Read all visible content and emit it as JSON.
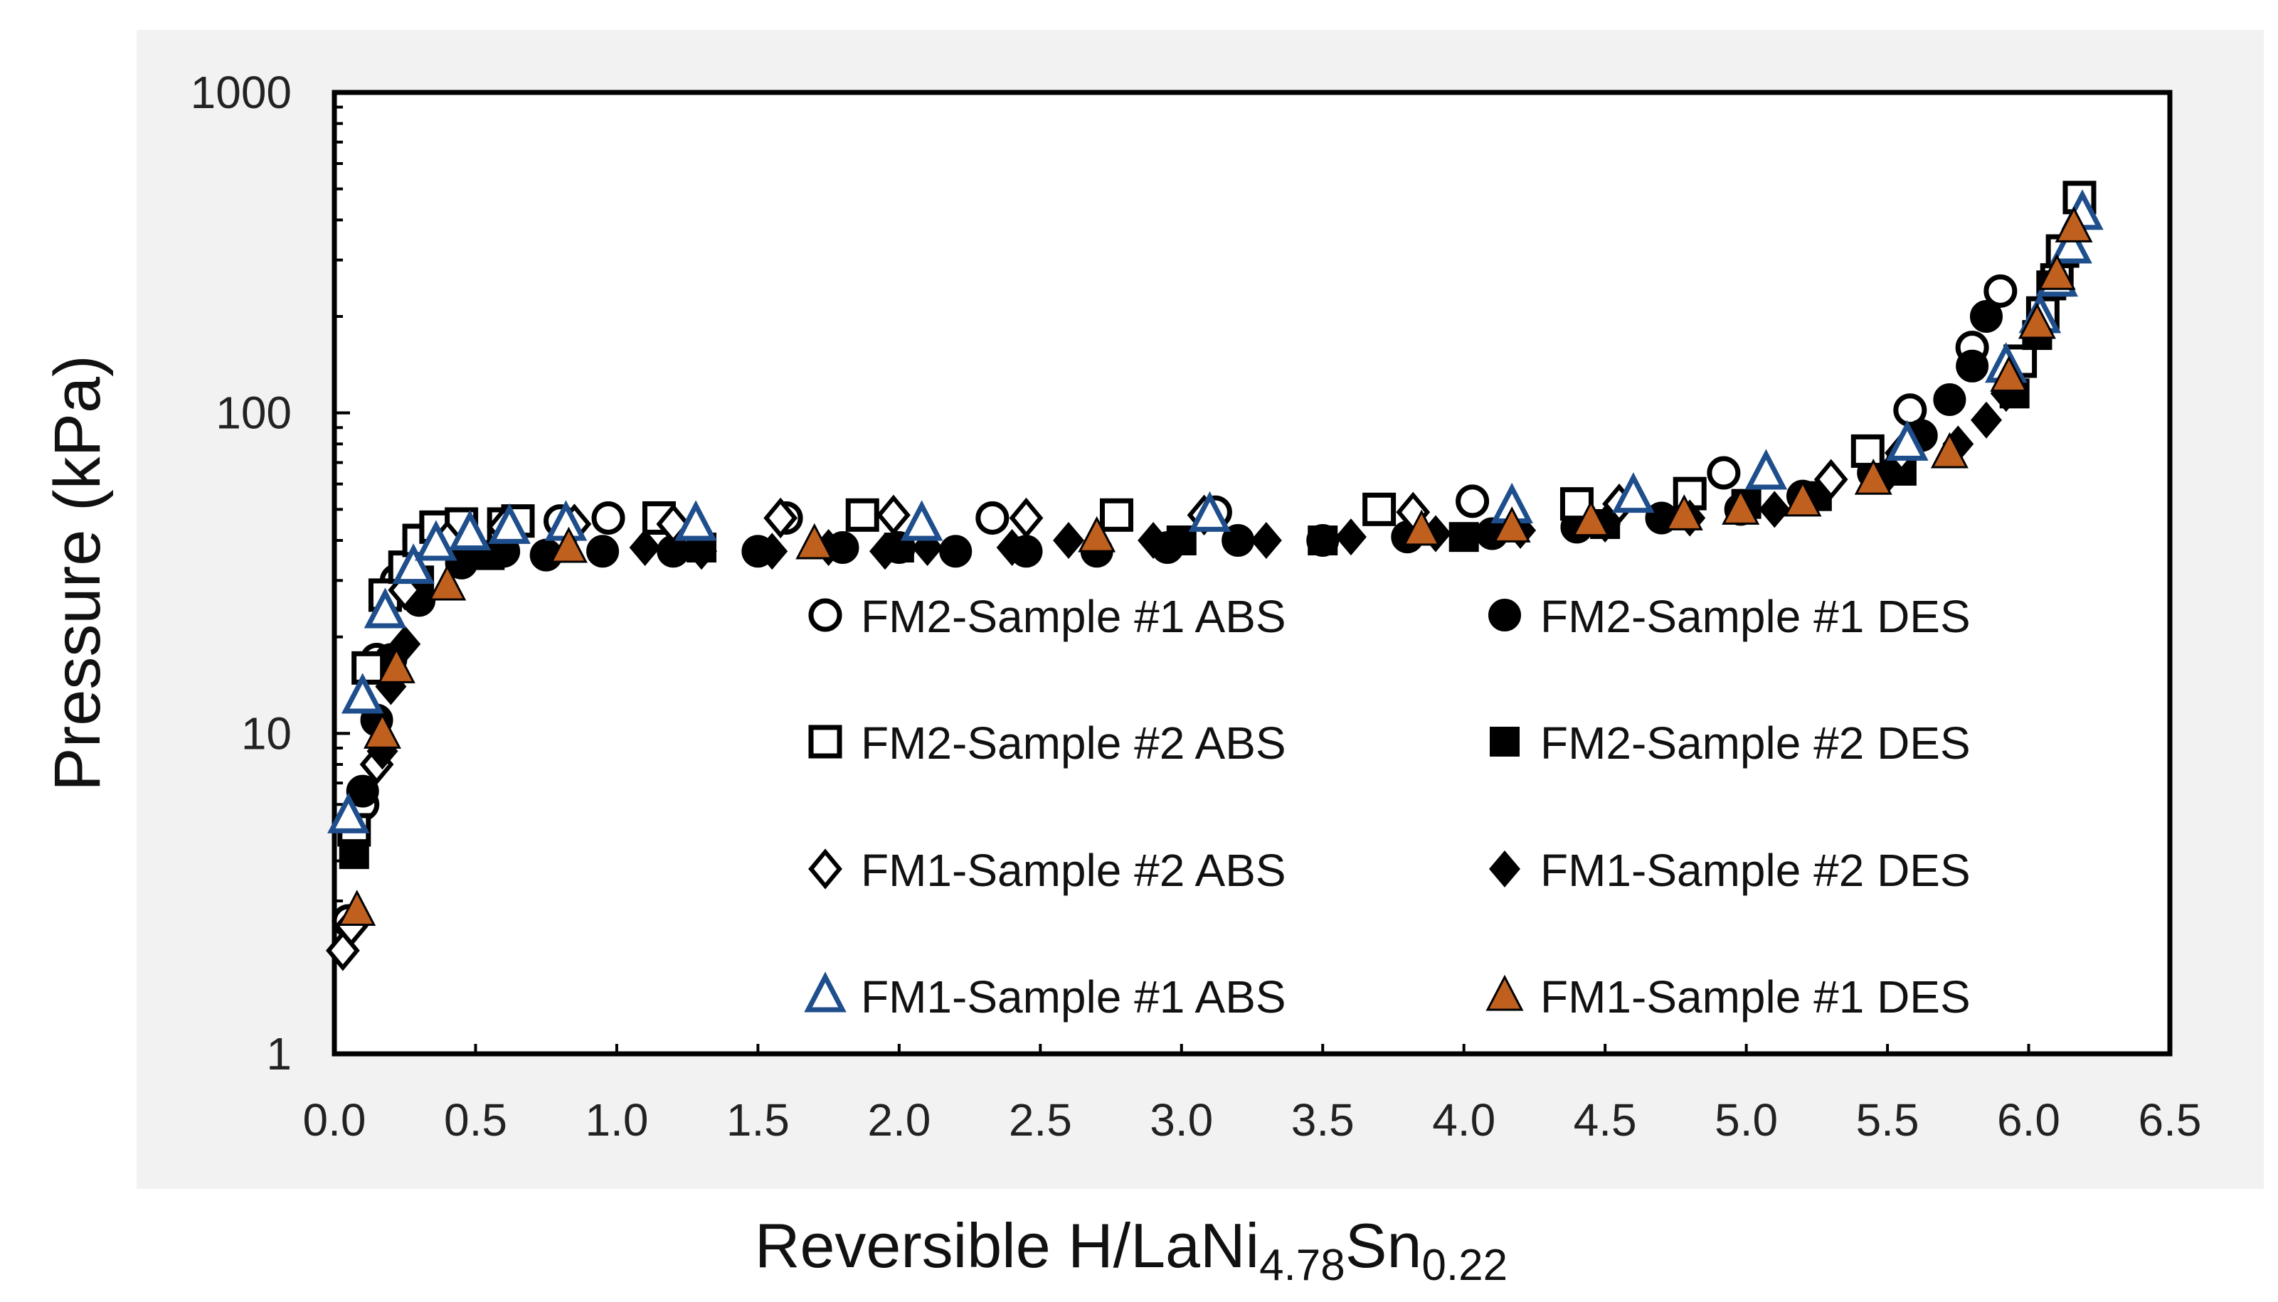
{
  "chart_data": {
    "type": "scatter",
    "title": "",
    "xlabel": {
      "main": "Reversible H/LaNi",
      "sub1": "4.78",
      "mid": "Sn",
      "sub2": "0.22"
    },
    "ylabel": "Pressure (kPa)",
    "xlim": [
      0.0,
      6.5
    ],
    "ylim": [
      1,
      1000
    ],
    "yscale": "log",
    "grid": false,
    "legend_placement": "center",
    "x_ticks": [
      "0.0",
      "0.5",
      "1.0",
      "1.5",
      "2.0",
      "2.5",
      "3.0",
      "3.5",
      "4.0",
      "4.5",
      "5.0",
      "5.5",
      "6.0",
      "6.5"
    ],
    "y_ticks": [
      "1",
      "10",
      "100",
      "1000"
    ],
    "colors": {
      "background_outer": "#f2f2f2",
      "plot_bg": "#ffffff",
      "black": "#000000",
      "triangle_blue": "#1f4e8c",
      "triangle_orange": "#c0601f"
    },
    "series": [
      {
        "name": "FM2-Sample #1 ABS",
        "marker": "circle-open",
        "points": [
          [
            0.05,
            2.6
          ],
          [
            0.1,
            6
          ],
          [
            0.15,
            17
          ],
          [
            0.22,
            30
          ],
          [
            0.3,
            40
          ],
          [
            0.42,
            44
          ],
          [
            0.6,
            45
          ],
          [
            0.8,
            46
          ],
          [
            0.97,
            47
          ],
          [
            1.15,
            47
          ],
          [
            1.6,
            47
          ],
          [
            2.33,
            47
          ],
          [
            3.12,
            49
          ],
          [
            4.03,
            53
          ],
          [
            4.92,
            65
          ],
          [
            5.58,
            102
          ],
          [
            5.8,
            160
          ],
          [
            5.9,
            240
          ]
        ]
      },
      {
        "name": "FM2-Sample #1 DES",
        "marker": "circle-filled",
        "points": [
          [
            0.1,
            6.6
          ],
          [
            0.15,
            11
          ],
          [
            0.2,
            17
          ],
          [
            0.3,
            26
          ],
          [
            0.45,
            34
          ],
          [
            0.6,
            37
          ],
          [
            0.75,
            36
          ],
          [
            0.95,
            37
          ],
          [
            1.2,
            37
          ],
          [
            1.5,
            37
          ],
          [
            1.8,
            38
          ],
          [
            2.0,
            38
          ],
          [
            2.2,
            37
          ],
          [
            2.45,
            37
          ],
          [
            2.7,
            37
          ],
          [
            2.95,
            38
          ],
          [
            3.2,
            40
          ],
          [
            3.5,
            40
          ],
          [
            3.8,
            41
          ],
          [
            4.1,
            42
          ],
          [
            4.4,
            44
          ],
          [
            4.7,
            47
          ],
          [
            4.98,
            50
          ],
          [
            5.2,
            55
          ],
          [
            5.45,
            65
          ],
          [
            5.62,
            85
          ],
          [
            5.72,
            110
          ],
          [
            5.8,
            140
          ],
          [
            5.85,
            200
          ]
        ]
      },
      {
        "name": "FM2-Sample #2 ABS",
        "marker": "square-open",
        "points": [
          [
            0.07,
            5
          ],
          [
            0.12,
            16
          ],
          [
            0.18,
            27
          ],
          [
            0.25,
            33
          ],
          [
            0.3,
            40
          ],
          [
            0.36,
            44
          ],
          [
            0.45,
            45
          ],
          [
            0.6,
            45
          ],
          [
            0.65,
            46
          ],
          [
            1.15,
            47
          ],
          [
            1.87,
            48
          ],
          [
            2.77,
            48
          ],
          [
            3.7,
            50
          ],
          [
            4.4,
            52
          ],
          [
            4.8,
            56
          ],
          [
            5.43,
            76
          ],
          [
            5.97,
            145
          ],
          [
            6.05,
            205
          ],
          [
            6.1,
            260
          ],
          [
            6.12,
            320
          ],
          [
            6.18,
            470
          ]
        ]
      },
      {
        "name": "FM2-Sample #2 DES",
        "marker": "square-filled",
        "points": [
          [
            0.07,
            4.2
          ],
          [
            0.3,
            30
          ],
          [
            0.55,
            36
          ],
          [
            1.3,
            38
          ],
          [
            2.0,
            38
          ],
          [
            3.0,
            40
          ],
          [
            3.5,
            40
          ],
          [
            4.0,
            41
          ],
          [
            4.5,
            45
          ],
          [
            5.0,
            52
          ],
          [
            5.25,
            55
          ],
          [
            5.55,
            66
          ],
          [
            5.95,
            115
          ],
          [
            6.03,
            175
          ],
          [
            6.08,
            250
          ]
        ]
      },
      {
        "name": "FM1-Sample #2 ABS",
        "marker": "diamond-open",
        "points": [
          [
            0.03,
            2.1
          ],
          [
            0.06,
            2.5
          ],
          [
            0.15,
            8
          ],
          [
            0.25,
            28
          ],
          [
            0.4,
            40
          ],
          [
            0.6,
            44
          ],
          [
            0.85,
            45
          ],
          [
            1.2,
            45
          ],
          [
            1.58,
            47
          ],
          [
            1.98,
            48
          ],
          [
            2.45,
            47
          ],
          [
            3.08,
            48
          ],
          [
            3.82,
            49
          ],
          [
            4.55,
            52
          ],
          [
            5.3,
            62
          ],
          [
            5.55,
            75
          ]
        ]
      },
      {
        "name": "FM1-Sample #2 DES",
        "marker": "diamond-filled",
        "points": [
          [
            0.17,
            8.8
          ],
          [
            0.2,
            14
          ],
          [
            0.25,
            19
          ],
          [
            0.5,
            37
          ],
          [
            1.1,
            38
          ],
          [
            1.3,
            37
          ],
          [
            1.55,
            37
          ],
          [
            1.75,
            38
          ],
          [
            1.95,
            37
          ],
          [
            2.1,
            38
          ],
          [
            2.4,
            38
          ],
          [
            2.6,
            40
          ],
          [
            2.9,
            40
          ],
          [
            3.3,
            40
          ],
          [
            3.6,
            41
          ],
          [
            3.9,
            42
          ],
          [
            4.2,
            43
          ],
          [
            4.5,
            45
          ],
          [
            4.8,
            47
          ],
          [
            5.1,
            50
          ],
          [
            5.5,
            64
          ],
          [
            5.75,
            80
          ],
          [
            5.85,
            95
          ],
          [
            5.92,
            115
          ]
        ]
      },
      {
        "name": "FM1-Sample #1 ABS",
        "marker": "triangle-open",
        "points": [
          [
            0.05,
            5.5
          ],
          [
            0.1,
            13
          ],
          [
            0.18,
            24
          ],
          [
            0.28,
            33
          ],
          [
            0.36,
            39
          ],
          [
            0.48,
            42
          ],
          [
            0.62,
            44
          ],
          [
            0.82,
            45
          ],
          [
            1.28,
            45
          ],
          [
            2.08,
            45
          ],
          [
            3.1,
            48
          ],
          [
            4.17,
            51
          ],
          [
            4.6,
            55
          ],
          [
            5.07,
            65
          ],
          [
            5.57,
            80
          ],
          [
            5.92,
            140
          ],
          [
            6.04,
            200
          ],
          [
            6.1,
            260
          ],
          [
            6.15,
            330
          ],
          [
            6.19,
            420
          ]
        ]
      },
      {
        "name": "FM1-Sample #1 DES",
        "marker": "triangle-filled",
        "points": [
          [
            0.08,
            2.8
          ],
          [
            0.17,
            10
          ],
          [
            0.22,
            16
          ],
          [
            0.4,
            29
          ],
          [
            0.83,
            38
          ],
          [
            1.7,
            39
          ],
          [
            2.7,
            41
          ],
          [
            3.85,
            43
          ],
          [
            4.17,
            44
          ],
          [
            4.45,
            46
          ],
          [
            4.78,
            48
          ],
          [
            4.98,
            50
          ],
          [
            5.2,
            53
          ],
          [
            5.45,
            62
          ],
          [
            5.72,
            75
          ],
          [
            5.93,
            130
          ],
          [
            6.03,
            190
          ],
          [
            6.1,
            270
          ],
          [
            6.16,
            380
          ]
        ]
      }
    ]
  }
}
